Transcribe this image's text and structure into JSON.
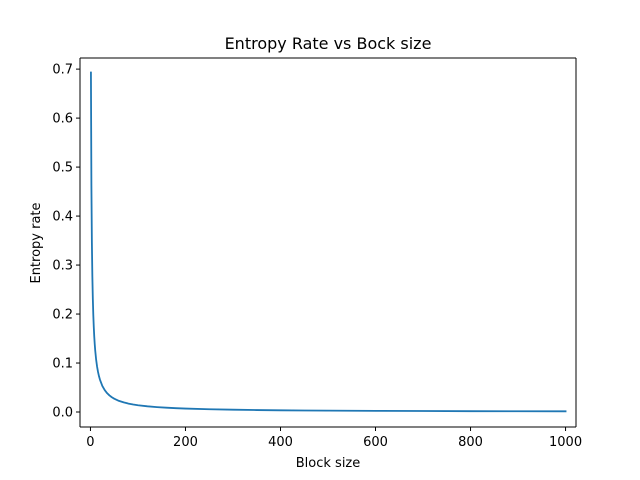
{
  "chart_data": {
    "type": "line",
    "title": "Entropy Rate vs Bock size",
    "xlabel": "Block size",
    "ylabel": "Entropy rate",
    "xlim": [
      -22,
      1022
    ],
    "ylim": [
      -0.0306,
      0.7227
    ],
    "xticks": [
      0,
      200,
      400,
      600,
      800,
      1000
    ],
    "yticks": [
      0.0,
      0.1,
      0.2,
      0.3,
      0.4,
      0.5,
      0.6,
      0.7
    ],
    "xtick_labels": [
      "0",
      "200",
      "400",
      "600",
      "800",
      "1000"
    ],
    "ytick_labels": [
      "0.0",
      "0.1",
      "0.2",
      "0.3",
      "0.4",
      "0.5",
      "0.6",
      "0.7"
    ],
    "grid": false,
    "legend": null,
    "series": [
      {
        "color": "#1f77b4",
        "x": [
          1,
          2,
          3,
          4,
          5,
          6,
          7,
          8,
          9,
          10,
          12,
          14,
          16,
          18,
          20,
          25,
          30,
          35,
          40,
          45,
          50,
          60,
          70,
          80,
          90,
          100,
          120,
          140,
          160,
          180,
          200,
          250,
          300,
          350,
          400,
          450,
          500,
          600,
          700,
          800,
          900,
          1000
        ],
        "y": [
          0.6931,
          0.4621,
          0.3466,
          0.2773,
          0.2311,
          0.1981,
          0.1733,
          0.154,
          0.1386,
          0.126,
          0.1066,
          0.0924,
          0.0815,
          0.0729,
          0.066,
          0.0533,
          0.0447,
          0.0385,
          0.0338,
          0.0301,
          0.0272,
          0.0227,
          0.0196,
          0.0172,
          0.0153,
          0.0138,
          0.0116,
          0.01,
          0.0088,
          0.0078,
          0.007,
          0.0056,
          0.0047,
          0.004,
          0.0035,
          0.0031,
          0.0028,
          0.0023,
          0.002,
          0.0017,
          0.0015,
          0.0014
        ]
      }
    ]
  }
}
